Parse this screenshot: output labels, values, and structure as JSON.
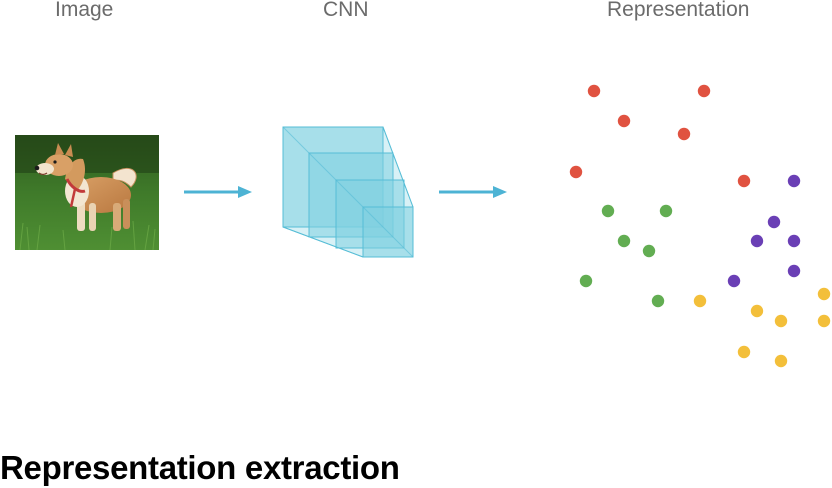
{
  "stages": {
    "image_label": "Image",
    "cnn_label": "CNN",
    "representation_label": "Representation"
  },
  "caption": "Representation extraction",
  "colors": {
    "arrow": "#4db3d4",
    "cube_fill": "#7fcfe0",
    "cube_stroke": "#56bdd6",
    "red": "#e05240",
    "green": "#62ad52",
    "purple": "#6a3fb5",
    "yellow": "#f3bf3a",
    "label": "#6b6b6b"
  },
  "icons": {
    "photo": "dog-photo",
    "model": "cnn-layers-icon",
    "flow": "arrow-right-icon"
  },
  "points": [
    {
      "cluster": "red"
    },
    {
      "cluster": "red"
    },
    {
      "cluster": "red"
    },
    {
      "cluster": "red"
    },
    {
      "cluster": "red"
    },
    {
      "cluster": "red"
    },
    {
      "cluster": "green"
    },
    {
      "cluster": "green"
    },
    {
      "cluster": "green"
    },
    {
      "cluster": "green"
    },
    {
      "cluster": "green"
    },
    {
      "cluster": "green"
    },
    {
      "cluster": "purple"
    },
    {
      "cluster": "purple"
    },
    {
      "cluster": "purple"
    },
    {
      "cluster": "purple"
    },
    {
      "cluster": "purple"
    },
    {
      "cluster": "purple"
    },
    {
      "cluster": "yellow"
    },
    {
      "cluster": "yellow"
    },
    {
      "cluster": "yellow"
    },
    {
      "cluster": "yellow"
    },
    {
      "cluster": "yellow"
    },
    {
      "cluster": "yellow"
    },
    {
      "cluster": "yellow"
    }
  ]
}
